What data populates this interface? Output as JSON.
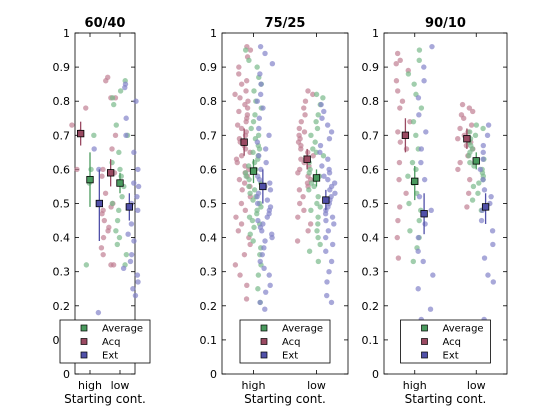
{
  "chart_data": {
    "type": "scatter",
    "xlabel": "Starting cont.",
    "categories": [
      "high",
      "low"
    ],
    "ylim": [
      0,
      1
    ],
    "yticks": [
      0,
      0.1,
      0.2,
      0.3,
      0.4,
      0.5,
      0.6,
      0.7,
      0.8,
      0.9,
      1
    ],
    "ytick_labels": [
      "0",
      "0.1",
      "0.2",
      "0.3",
      "0.4",
      "0.5",
      "0.6",
      "0.7",
      "0.8",
      "0.9",
      "1"
    ],
    "legend": {
      "location": "bottom-center",
      "entries": [
        {
          "name": "Average",
          "color": "#4a9a5e"
        },
        {
          "name": "Acq",
          "color": "#9a4a62"
        },
        {
          "name": "Ext",
          "color": "#5050a8"
        }
      ]
    },
    "series_colors": {
      "Average": {
        "point": "#79b98a",
        "marker": "#4a9a5e"
      },
      "Acq": {
        "point": "#c07f93",
        "marker": "#9a4a62"
      },
      "Ext": {
        "point": "#8383c9",
        "marker": "#5050a8"
      }
    },
    "panels": [
      {
        "title": "60/40",
        "summary": {
          "high": {
            "Acq": {
              "mean": 0.705,
              "err": [
                0.67,
                0.74
              ]
            },
            "Average": {
              "mean": 0.57,
              "err": [
                0.49,
                0.65
              ]
            },
            "Ext": {
              "mean": 0.5,
              "err": [
                0.39,
                0.6
              ]
            }
          },
          "low": {
            "Acq": {
              "mean": 0.59,
              "err": [
                0.55,
                0.63
              ]
            },
            "Average": {
              "mean": 0.56,
              "err": [
                0.53,
                0.59
              ]
            },
            "Ext": {
              "mean": 0.49,
              "err": [
                0.45,
                0.53
              ]
            }
          }
        },
        "points": {
          "high": {
            "Acq": [
              0.78,
              0.73,
              0.71,
              0.6
            ],
            "Average": [
              0.7,
              0.6,
              0.56,
              0.32
            ],
            "Ext": [
              0.66,
              0.6,
              0.18
            ]
          },
          "low": {
            "Acq": [
              0.87,
              0.86,
              0.81,
              0.81,
              0.7,
              0.66,
              0.6,
              0.59,
              0.58,
              0.53,
              0.5,
              0.49,
              0.48,
              0.47,
              0.45,
              0.43,
              0.42,
              0.4,
              0.37,
              0.35,
              0.32,
              0.32
            ],
            "Average": [
              0.86,
              0.83,
              0.81,
              0.79,
              0.73,
              0.7,
              0.65,
              0.62,
              0.6,
              0.58,
              0.55,
              0.52,
              0.5,
              0.48,
              0.45,
              0.42,
              0.4,
              0.38,
              0.35,
              0.32
            ],
            "Ext": [
              0.85,
              0.84,
              0.8,
              0.75,
              0.7,
              0.65,
              0.6,
              0.56,
              0.55,
              0.52,
              0.5,
              0.48,
              0.44,
              0.41,
              0.39,
              0.35,
              0.33,
              0.31,
              0.29,
              0.27,
              0.25,
              0.23
            ]
          }
        }
      },
      {
        "title": "75/25",
        "summary": {
          "high": {
            "Acq": {
              "mean": 0.68,
              "err": [
                0.64,
                0.72
              ]
            },
            "Average": {
              "mean": 0.595,
              "err": [
                0.56,
                0.63
              ]
            },
            "Ext": {
              "mean": 0.55,
              "err": [
                0.5,
                0.6
              ]
            }
          },
          "low": {
            "Acq": {
              "mean": 0.63,
              "err": [
                0.6,
                0.66
              ]
            },
            "Average": {
              "mean": 0.575,
              "err": [
                0.55,
                0.6
              ]
            },
            "Ext": {
              "mean": 0.51,
              "err": [
                0.48,
                0.54
              ]
            }
          }
        },
        "points": {
          "high": {
            "Acq": [
              0.96,
              0.95,
              0.93,
              0.9,
              0.88,
              0.86,
              0.85,
              0.83,
              0.82,
              0.81,
              0.8,
              0.79,
              0.78,
              0.77,
              0.76,
              0.75,
              0.74,
              0.73,
              0.72,
              0.71,
              0.7,
              0.69,
              0.68,
              0.67,
              0.66,
              0.65,
              0.64,
              0.63,
              0.62,
              0.61,
              0.6,
              0.59,
              0.58,
              0.57,
              0.56,
              0.55,
              0.54,
              0.52,
              0.5,
              0.48,
              0.46,
              0.44,
              0.42,
              0.4,
              0.38,
              0.35,
              0.32,
              0.29,
              0.26,
              0.22
            ],
            "Average": [
              0.95,
              0.92,
              0.9,
              0.87,
              0.85,
              0.83,
              0.8,
              0.78,
              0.76,
              0.74,
              0.72,
              0.7,
              0.69,
              0.67,
              0.66,
              0.65,
              0.64,
              0.63,
              0.62,
              0.61,
              0.6,
              0.59,
              0.58,
              0.57,
              0.56,
              0.55,
              0.54,
              0.53,
              0.52,
              0.51,
              0.5,
              0.49,
              0.48,
              0.47,
              0.46,
              0.45,
              0.44,
              0.43,
              0.41,
              0.39,
              0.37,
              0.35,
              0.32,
              0.29,
              0.25,
              0.21
            ],
            "Ext": [
              0.96,
              0.94,
              0.91,
              0.88,
              0.85,
              0.82,
              0.8,
              0.78,
              0.75,
              0.72,
              0.7,
              0.68,
              0.66,
              0.64,
              0.62,
              0.6,
              0.58,
              0.57,
              0.56,
              0.55,
              0.54,
              0.53,
              0.52,
              0.51,
              0.5,
              0.49,
              0.48,
              0.47,
              0.46,
              0.45,
              0.44,
              0.43,
              0.42,
              0.41,
              0.4,
              0.39,
              0.37,
              0.35,
              0.33,
              0.31,
              0.29,
              0.26,
              0.24,
              0.21,
              0.19
            ]
          },
          "low": {
            "Acq": [
              0.83,
              0.82,
              0.8,
              0.78,
              0.76,
              0.74,
              0.72,
              0.71,
              0.7,
              0.69,
              0.68,
              0.67,
              0.66,
              0.65,
              0.64,
              0.63,
              0.62,
              0.61,
              0.6,
              0.59,
              0.58,
              0.57,
              0.56,
              0.55,
              0.54,
              0.52,
              0.5,
              0.48,
              0.46,
              0.44,
              0.42,
              0.39
            ],
            "Average": [
              0.82,
              0.81,
              0.79,
              0.76,
              0.74,
              0.72,
              0.7,
              0.68,
              0.66,
              0.65,
              0.64,
              0.62,
              0.6,
              0.59,
              0.58,
              0.57,
              0.56,
              0.55,
              0.54,
              0.52,
              0.5,
              0.49,
              0.48,
              0.46,
              0.44,
              0.42,
              0.4,
              0.38,
              0.36,
              0.33
            ],
            "Ext": [
              0.79,
              0.77,
              0.75,
              0.73,
              0.71,
              0.69,
              0.67,
              0.65,
              0.63,
              0.61,
              0.6,
              0.59,
              0.58,
              0.57,
              0.56,
              0.55,
              0.54,
              0.53,
              0.52,
              0.51,
              0.5,
              0.49,
              0.48,
              0.47,
              0.46,
              0.45,
              0.44,
              0.42,
              0.4,
              0.38,
              0.36,
              0.33,
              0.3,
              0.27,
              0.23,
              0.21
            ]
          }
        }
      },
      {
        "title": "90/10",
        "summary": {
          "high": {
            "Acq": {
              "mean": 0.7,
              "err": [
                0.65,
                0.75
              ]
            },
            "Average": {
              "mean": 0.565,
              "err": [
                0.51,
                0.61
              ]
            },
            "Ext": {
              "mean": 0.47,
              "err": [
                0.41,
                0.53
              ]
            }
          },
          "low": {
            "Acq": {
              "mean": 0.69,
              "err": [
                0.66,
                0.72
              ]
            },
            "Average": {
              "mean": 0.625,
              "err": [
                0.6,
                0.65
              ]
            },
            "Ext": {
              "mean": 0.49,
              "err": [
                0.44,
                0.53
              ]
            }
          }
        },
        "points": {
          "high": {
            "Acq": [
              0.94,
              0.92,
              0.91,
              0.89,
              0.86,
              0.83,
              0.8,
              0.78,
              0.74,
              0.71,
              0.68,
              0.66,
              0.62,
              0.57,
              0.53,
              0.49,
              0.45,
              0.4,
              0.34,
              0.07
            ],
            "Average": [
              0.95,
              0.92,
              0.88,
              0.85,
              0.82,
              0.78,
              0.74,
              0.7,
              0.66,
              0.62,
              0.6,
              0.58,
              0.56,
              0.53,
              0.5,
              0.48,
              0.45,
              0.42,
              0.4,
              0.37,
              0.33
            ],
            "Ext": [
              0.96,
              0.9,
              0.86,
              0.81,
              0.76,
              0.71,
              0.66,
              0.62,
              0.57,
              0.52,
              0.48,
              0.44,
              0.4,
              0.36,
              0.33,
              0.29,
              0.25,
              0.19,
              0.16,
              0.1
            ]
          },
          "low": {
            "Acq": [
              0.79,
              0.78,
              0.77,
              0.76,
              0.75,
              0.73,
              0.72,
              0.71,
              0.7,
              0.69,
              0.68,
              0.67,
              0.66,
              0.64,
              0.62,
              0.6,
              0.57,
              0.53,
              0.49
            ],
            "Average": [
              0.73,
              0.72,
              0.71,
              0.7,
              0.69,
              0.68,
              0.67,
              0.66,
              0.65,
              0.64,
              0.63,
              0.62,
              0.61,
              0.6,
              0.59,
              0.58,
              0.57,
              0.56,
              0.55,
              0.53,
              0.51,
              0.48
            ],
            "Ext": [
              0.73,
              0.7,
              0.67,
              0.65,
              0.63,
              0.6,
              0.57,
              0.54,
              0.52,
              0.5,
              0.48,
              0.45,
              0.42,
              0.38,
              0.34,
              0.29,
              0.27,
              0.16
            ]
          }
        }
      }
    ]
  }
}
